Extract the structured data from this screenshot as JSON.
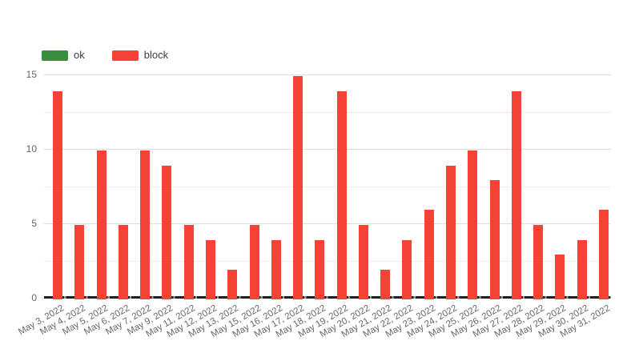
{
  "background_color": "#FFFFFF",
  "legend": {
    "position": "top-left",
    "items": [
      {
        "label": "ok",
        "color": "#388E3C"
      },
      {
        "label": "block",
        "color": "#F44336"
      }
    ]
  },
  "y_axis": {
    "tick_labels": [
      "0",
      "5",
      "10",
      "15"
    ],
    "tick_values": [
      0,
      5,
      10,
      15
    ],
    "minor_gridlines": [
      2.5,
      7.5,
      12.5
    ],
    "major_gridline_color": "#DEDEDE",
    "minor_gridline_color": "#EDEDED",
    "baseline_color": "#1F1F1F",
    "label_color": "#636363"
  },
  "x_axis": {
    "label_color": "#666666",
    "label_rotation_deg": -30
  },
  "chart_data": {
    "type": "bar",
    "title": "",
    "xlabel": "",
    "ylabel": "",
    "ylim": [
      0,
      15
    ],
    "grid": true,
    "legend_position": "top-left",
    "categories": [
      "May 3, 2022",
      "May 4, 2022",
      "May 5, 2022",
      "May 6, 2022",
      "May 7, 2022",
      "May 9, 2022",
      "May 11, 2022",
      "May 12, 2022",
      "May 13, 2022",
      "May 15, 2022",
      "May 16, 2022",
      "May 17, 2022",
      "May 18, 2022",
      "May 19, 2022",
      "May 20, 2022",
      "May 21, 2022",
      "May 22, 2022",
      "May 23, 2022",
      "May 24, 2022",
      "May 25, 2022",
      "May 26, 2022",
      "May 27, 2022",
      "May 28, 2022",
      "May 29, 2022",
      "May 30, 2022",
      "May 31, 2022"
    ],
    "series": [
      {
        "name": "ok",
        "color": "#388E3C",
        "values": [
          0,
          0,
          0,
          0,
          0,
          0,
          0,
          0,
          0,
          0,
          0,
          0,
          0,
          0,
          0,
          0,
          0,
          0,
          0,
          0,
          0,
          0,
          0,
          0,
          0,
          0
        ]
      },
      {
        "name": "block",
        "color": "#F44336",
        "values": [
          14,
          5,
          10,
          5,
          10,
          9,
          5,
          4,
          2,
          5,
          4,
          15,
          4,
          14,
          5,
          2,
          4,
          6,
          9,
          10,
          8,
          14,
          5,
          3,
          4,
          6
        ]
      }
    ]
  }
}
